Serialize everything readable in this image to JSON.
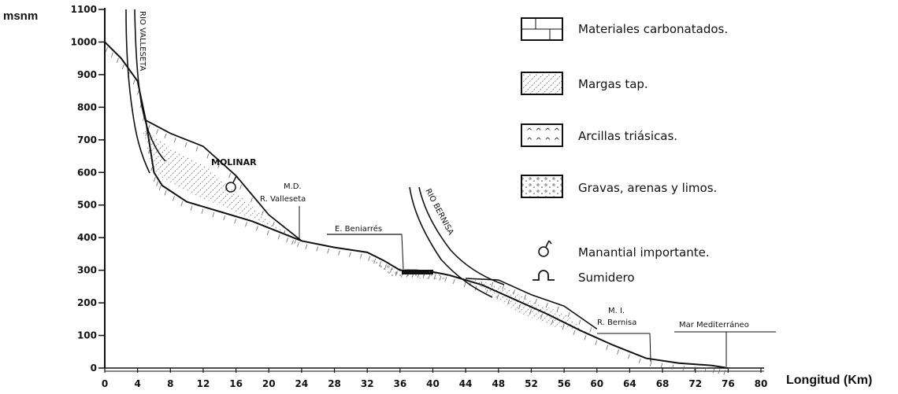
{
  "axes": {
    "y_title": "msnm",
    "x_title": "Longitud (Km)",
    "y_ticks": [
      "0",
      "100",
      "200",
      "300",
      "400",
      "500",
      "600",
      "700",
      "800",
      "900",
      "1000",
      "1100"
    ],
    "x_ticks": [
      "0",
      "4",
      "8",
      "12",
      "16",
      "20",
      "24",
      "28",
      "32",
      "36",
      "40",
      "44",
      "48",
      "52",
      "56",
      "60",
      "64",
      "68",
      "72",
      "76",
      "80"
    ]
  },
  "labels": {
    "rio_valleseta": "RIO VALLESETA",
    "rio_bernisa": "RIO BERNISA",
    "molinar": "MOLINAR",
    "md_1": "M.D.",
    "md_2": "R. Valleseta",
    "beniarres": "E. Beniarrés",
    "mi_1": "M. I.",
    "mi_2": "R. Bernisa",
    "mar": "Mar Mediterráneo"
  },
  "legend": {
    "carbonatados": "Materiales carbonatados.",
    "margas": "Margas tap.",
    "arcillas": "Arcillas triásicas.",
    "gravas": "Gravas, arenas y limos.",
    "manantial": "Manantial importante.",
    "sumidero": "Sumidero"
  },
  "profile_data": {
    "valleseta_profile": [
      [
        0,
        1000
      ],
      [
        2,
        950
      ],
      [
        4,
        880
      ],
      [
        5,
        760
      ],
      [
        6,
        600
      ],
      [
        7,
        560
      ],
      [
        10,
        510
      ],
      [
        14,
        480
      ],
      [
        18,
        450
      ],
      [
        22,
        410
      ],
      [
        24,
        390
      ],
      [
        28,
        370
      ],
      [
        32,
        355
      ],
      [
        34,
        330
      ],
      [
        36,
        300
      ],
      [
        38,
        300
      ],
      [
        40,
        295
      ],
      [
        42,
        285
      ]
    ],
    "molinar_upper": [
      [
        5,
        760
      ],
      [
        8,
        720
      ],
      [
        12,
        680
      ],
      [
        16,
        590
      ],
      [
        20,
        470
      ],
      [
        24,
        390
      ]
    ],
    "bernisa_profile": [
      [
        42,
        285
      ],
      [
        46,
        255
      ],
      [
        50,
        210
      ],
      [
        54,
        165
      ],
      [
        58,
        115
      ],
      [
        62,
        70
      ],
      [
        66,
        30
      ],
      [
        70,
        15
      ],
      [
        74,
        8
      ],
      [
        76,
        0
      ]
    ],
    "bernisa_upper": [
      [
        44,
        275
      ],
      [
        48,
        270
      ],
      [
        52,
        225
      ],
      [
        56,
        190
      ],
      [
        60,
        120
      ]
    ]
  }
}
